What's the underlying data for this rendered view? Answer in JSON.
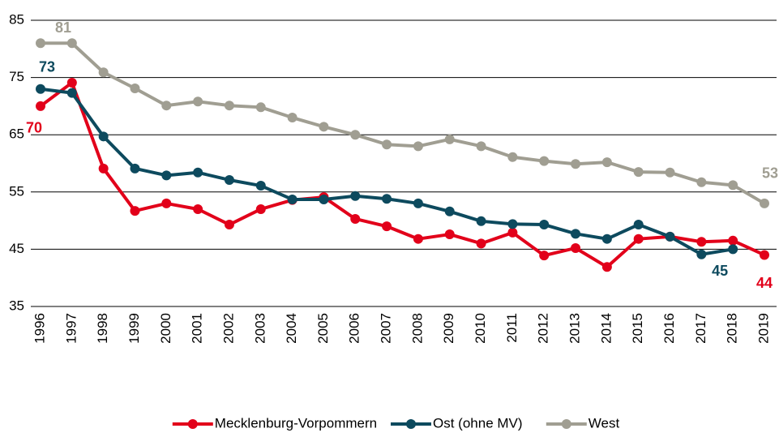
{
  "chart_data": {
    "type": "line",
    "categories": [
      "1996",
      "1997",
      "1998",
      "1999",
      "2000",
      "2001",
      "2002",
      "2003",
      "2004",
      "2005",
      "2006",
      "2007",
      "2008",
      "2009",
      "2010",
      "2011",
      "2012",
      "2013",
      "2014",
      "2015",
      "2016",
      "2017",
      "2018",
      "2019"
    ],
    "series": [
      {
        "name": "Mecklenburg-Vorpommern",
        "color": "#e2001a",
        "values": [
          70,
          74.1,
          59.1,
          51.7,
          53.0,
          52.0,
          49.3,
          52.0,
          53.6,
          54.1,
          50.3,
          49.0,
          46.8,
          47.6,
          46.0,
          47.9,
          43.9,
          45.2,
          41.9,
          46.8,
          47.2,
          46.3,
          46.5,
          44
        ],
        "value_labels": [
          "70",
          null,
          null,
          null,
          null,
          null,
          null,
          null,
          null,
          null,
          null,
          null,
          null,
          null,
          null,
          null,
          null,
          null,
          null,
          null,
          null,
          null,
          null,
          "44"
        ]
      },
      {
        "name": "Ost (ohne MV)",
        "color": "#0d4a5e",
        "values": [
          73,
          72.3,
          64.7,
          59.1,
          57.9,
          58.4,
          57.1,
          56.1,
          53.7,
          53.7,
          54.3,
          53.8,
          53.0,
          51.6,
          49.9,
          49.4,
          49.3,
          47.7,
          46.8,
          49.3,
          47.2,
          44.1,
          45,
          null
        ],
        "value_labels": [
          "73",
          null,
          null,
          null,
          null,
          null,
          null,
          null,
          null,
          null,
          null,
          null,
          null,
          null,
          null,
          null,
          null,
          null,
          null,
          null,
          null,
          null,
          "45",
          null
        ]
      },
      {
        "name": "West",
        "color": "#a09e92",
        "values": [
          81,
          81,
          75.9,
          73.1,
          70.1,
          70.8,
          70.1,
          69.8,
          68.0,
          66.4,
          65.0,
          63.3,
          63.0,
          64.2,
          63.0,
          61.1,
          60.4,
          59.9,
          60.2,
          58.5,
          58.4,
          56.7,
          56.2,
          53
        ],
        "value_labels": [
          "81",
          null,
          null,
          null,
          null,
          null,
          null,
          null,
          null,
          null,
          null,
          null,
          null,
          null,
          null,
          null,
          null,
          null,
          null,
          null,
          null,
          null,
          null,
          "53"
        ]
      }
    ],
    "ylim": [
      35,
      85
    ],
    "yticks": [
      35,
      45,
      55,
      65,
      75,
      85
    ],
    "grid": true,
    "legend": "bottom"
  }
}
